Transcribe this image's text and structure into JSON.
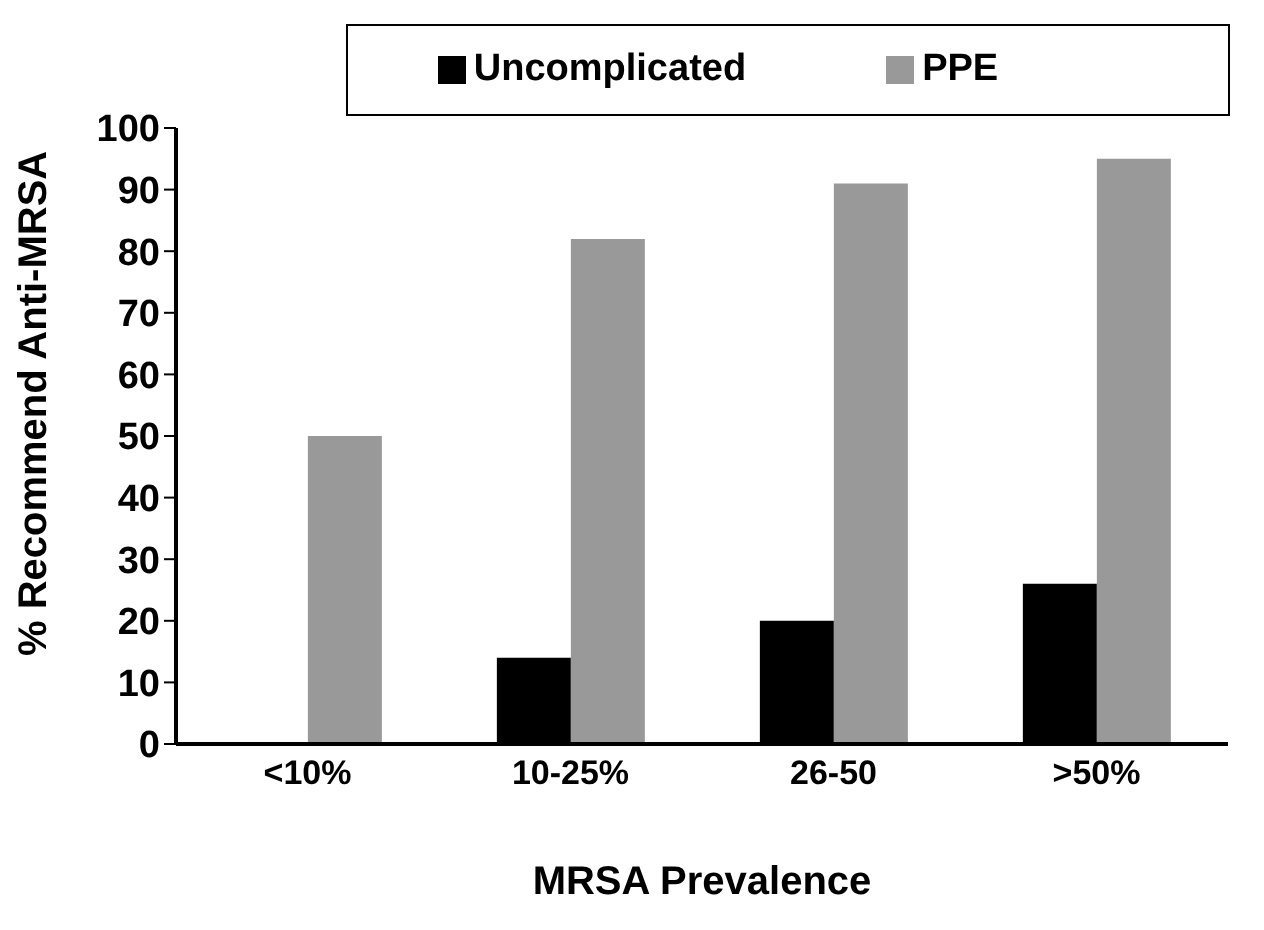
{
  "chart_data": {
    "type": "bar",
    "xlabel": "MRSA Prevalence",
    "ylabel": "% Recommend Anti-MRSA",
    "categories": [
      "<10%",
      "10-25%",
      "26-50",
      ">50%"
    ],
    "series": [
      {
        "name": "Uncomplicated",
        "color": "#000000",
        "values": [
          0,
          14,
          20,
          26
        ]
      },
      {
        "name": "PPE",
        "color": "#999999",
        "values": [
          50,
          82,
          91,
          95
        ]
      }
    ],
    "ylim": [
      0,
      100
    ],
    "yticks": [
      0,
      10,
      20,
      30,
      40,
      50,
      60,
      70,
      80,
      90,
      100
    ],
    "grid": false,
    "legend": "top"
  }
}
